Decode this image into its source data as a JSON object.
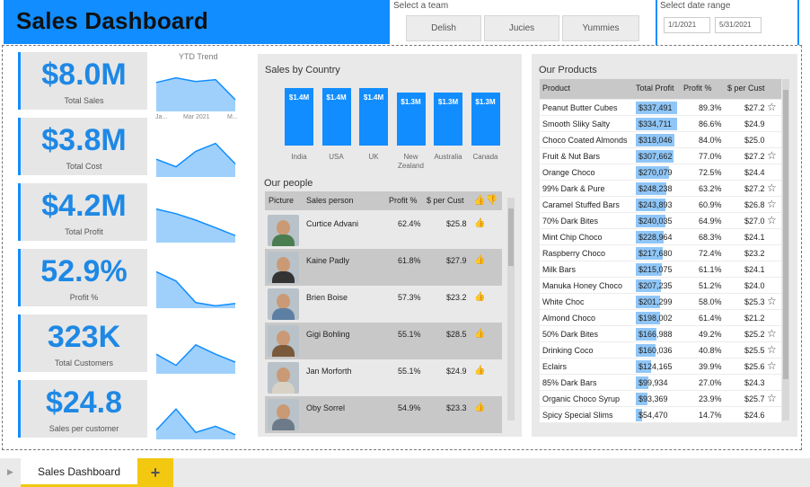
{
  "page": {
    "title": "Sales Dashboard"
  },
  "team_filter": {
    "label": "Select a team",
    "options": [
      "Delish",
      "Jucies",
      "Yummies"
    ]
  },
  "date_filter": {
    "label": "Select date range",
    "start": "1/1/2021",
    "end": "5/31/2021"
  },
  "kpis": [
    {
      "value": "$8.0M",
      "label": "Total Sales"
    },
    {
      "value": "$3.8M",
      "label": "Total Cost"
    },
    {
      "value": "$4.2M",
      "label": "Total Profit"
    },
    {
      "value": "52.9%",
      "label": "Profit %"
    },
    {
      "value": "323K",
      "label": "Total Customers"
    },
    {
      "value": "$24.8",
      "label": "Sales per customer"
    }
  ],
  "ytd_trend": {
    "title": "YTD Trend",
    "x_labels": [
      "Ja...",
      "Mar 2021",
      "M..."
    ],
    "series": [
      [
        0.62,
        0.72,
        0.64,
        0.68,
        0.25
      ],
      [
        0.38,
        0.22,
        0.55,
        0.72,
        0.28
      ],
      [
        0.72,
        0.62,
        0.48,
        0.32,
        0.15
      ],
      [
        0.78,
        0.58,
        0.12,
        0.05,
        0.1
      ],
      [
        0.42,
        0.18,
        0.62,
        0.42,
        0.25
      ],
      [
        0.2,
        0.65,
        0.15,
        0.28,
        0.1
      ]
    ]
  },
  "sales_by_country": {
    "title": "Sales by Country",
    "chart_data": {
      "type": "bar",
      "categories": [
        "India",
        "USA",
        "UK",
        "New Zealand",
        "Australia",
        "Canada"
      ],
      "values": [
        1.4,
        1.4,
        1.4,
        1.3,
        1.3,
        1.3
      ],
      "labels": [
        "$1.4M",
        "$1.4M",
        "$1.4M",
        "$1.3M",
        "$1.3M",
        "$1.3M"
      ]
    }
  },
  "people": {
    "title": "Our people",
    "columns": [
      "Picture",
      "Sales person",
      "Profit %",
      "$ per Cust"
    ],
    "rows": [
      {
        "name": "Curtice Advani",
        "profit": "62.4%",
        "per_cust": "$25.8",
        "shirt": "#4a7d4f"
      },
      {
        "name": "Kaine Padly",
        "profit": "61.8%",
        "per_cust": "$27.9",
        "shirt": "#333333"
      },
      {
        "name": "Brien Boise",
        "profit": "57.3%",
        "per_cust": "$23.2",
        "shirt": "#5d7fa3"
      },
      {
        "name": "Gigi Bohling",
        "profit": "55.1%",
        "per_cust": "$28.5",
        "shirt": "#7a5a3a"
      },
      {
        "name": "Jan Morforth",
        "profit": "55.1%",
        "per_cust": "$24.9",
        "shirt": "#d8d2c6"
      },
      {
        "name": "Oby Sorrel",
        "profit": "54.9%",
        "per_cust": "$23.3",
        "shirt": "#6c7a89"
      }
    ]
  },
  "products": {
    "title": "Our Products",
    "columns": [
      "Product",
      "Total Profit",
      "Profit %",
      "$ per Cust"
    ],
    "max_profit": 337491,
    "rows": [
      {
        "product": "Peanut Butter Cubes",
        "profit_value": 337491,
        "profit": "$337,491",
        "pct": "89.3%",
        "per_cust": "$27.2",
        "star": true
      },
      {
        "product": "Smooth Sliky Salty",
        "profit_value": 334711,
        "profit": "$334,711",
        "pct": "86.6%",
        "per_cust": "$24.9",
        "star": false
      },
      {
        "product": "Choco Coated Almonds",
        "profit_value": 318046,
        "profit": "$318,046",
        "pct": "84.0%",
        "per_cust": "$25.0",
        "star": false
      },
      {
        "product": "Fruit & Nut Bars",
        "profit_value": 307662,
        "profit": "$307,662",
        "pct": "77.0%",
        "per_cust": "$27.2",
        "star": true
      },
      {
        "product": "Orange Choco",
        "profit_value": 270079,
        "profit": "$270,079",
        "pct": "72.5%",
        "per_cust": "$24.4",
        "star": false
      },
      {
        "product": "99% Dark & Pure",
        "profit_value": 248238,
        "profit": "$248,238",
        "pct": "63.2%",
        "per_cust": "$27.2",
        "star": true
      },
      {
        "product": "Caramel Stuffed Bars",
        "profit_value": 243893,
        "profit": "$243,893",
        "pct": "60.9%",
        "per_cust": "$26.8",
        "star": true
      },
      {
        "product": "70% Dark Bites",
        "profit_value": 240035,
        "profit": "$240,035",
        "pct": "64.9%",
        "per_cust": "$27.0",
        "star": true
      },
      {
        "product": "Mint Chip Choco",
        "profit_value": 228964,
        "profit": "$228,964",
        "pct": "68.3%",
        "per_cust": "$24.1",
        "star": false
      },
      {
        "product": "Raspberry Choco",
        "profit_value": 217680,
        "profit": "$217,680",
        "pct": "72.4%",
        "per_cust": "$23.2",
        "star": false
      },
      {
        "product": "Milk Bars",
        "profit_value": 215075,
        "profit": "$215,075",
        "pct": "61.1%",
        "per_cust": "$24.1",
        "star": false
      },
      {
        "product": "Manuka Honey Choco",
        "profit_value": 207235,
        "profit": "$207,235",
        "pct": "51.2%",
        "per_cust": "$24.0",
        "star": false
      },
      {
        "product": "White Choc",
        "profit_value": 201299,
        "profit": "$201,299",
        "pct": "58.0%",
        "per_cust": "$25.3",
        "star": true
      },
      {
        "product": "Almond Choco",
        "profit_value": 198002,
        "profit": "$198,002",
        "pct": "61.4%",
        "per_cust": "$21.2",
        "star": false
      },
      {
        "product": "50% Dark Bites",
        "profit_value": 166988,
        "profit": "$166,988",
        "pct": "49.2%",
        "per_cust": "$25.2",
        "star": true
      },
      {
        "product": "Drinking Coco",
        "profit_value": 160036,
        "profit": "$160,036",
        "pct": "40.8%",
        "per_cust": "$25.5",
        "star": true
      },
      {
        "product": "Eclairs",
        "profit_value": 124165,
        "profit": "$124,165",
        "pct": "39.9%",
        "per_cust": "$25.6",
        "star": true
      },
      {
        "product": "85% Dark Bars",
        "profit_value": 99934,
        "profit": "$99,934",
        "pct": "27.0%",
        "per_cust": "$24.3",
        "star": false
      },
      {
        "product": "Organic Choco Syrup",
        "profit_value": 93369,
        "profit": "$93,369",
        "pct": "23.9%",
        "per_cust": "$25.7",
        "star": true
      },
      {
        "product": "Spicy Special Slims",
        "profit_value": 54470,
        "profit": "$54,470",
        "pct": "14.7%",
        "per_cust": "$24.6",
        "star": false
      }
    ]
  },
  "tabs": {
    "active": "Sales Dashboard",
    "add": "+"
  },
  "colors": {
    "accent": "#118dff",
    "kpi_text": "#1e88e5",
    "tab_accent": "#f2c811"
  }
}
